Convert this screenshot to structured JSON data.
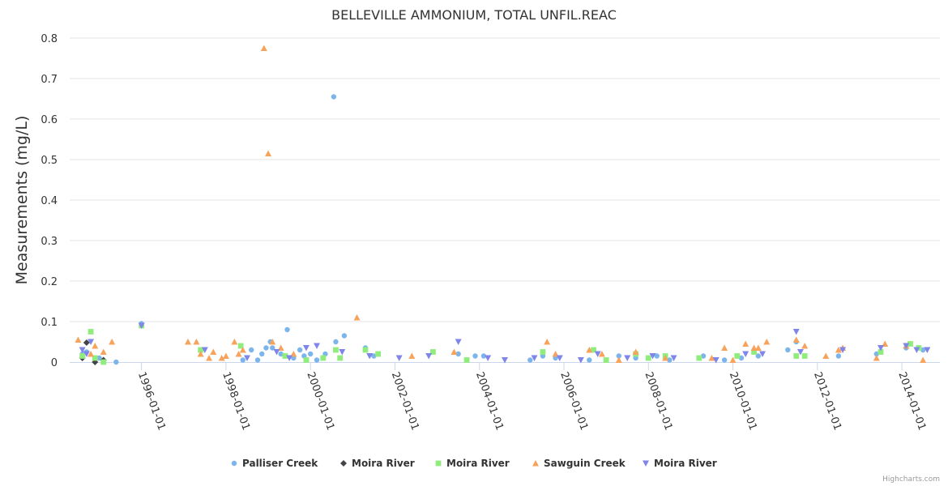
{
  "chart_data": {
    "type": "scatter",
    "title": "BELLEVILLE AMMONIUM, TOTAL UNFIL.REAC",
    "xlabel": "",
    "ylabel": "Measurements (mg/L)",
    "ylim": [
      0,
      0.8
    ],
    "yticks": [
      "0",
      "0.1",
      "0.2",
      "0.3",
      "0.4",
      "0.5",
      "0.6",
      "0.7",
      "0.8"
    ],
    "xlim": [
      1994.3,
      2014.9
    ],
    "xticks": [
      {
        "label": "1996-01-01",
        "value": 1996.0
      },
      {
        "label": "1998-01-01",
        "value": 1998.0
      },
      {
        "label": "2000-01-01",
        "value": 2000.0
      },
      {
        "label": "2002-01-01",
        "value": 2002.0
      },
      {
        "label": "2004-01-01",
        "value": 2004.0
      },
      {
        "label": "2006-01-01",
        "value": 2006.0
      },
      {
        "label": "2008-01-01",
        "value": 2008.0
      },
      {
        "label": "2010-01-01",
        "value": 2010.0
      },
      {
        "label": "2012-01-01",
        "value": 2012.0
      },
      {
        "label": "2014-01-01",
        "value": 2014.0
      }
    ],
    "grid": true,
    "legend_position": "bottom-center",
    "credits": "Highcharts.com",
    "series": [
      {
        "name": "Palliser Creek",
        "symbol": "circle",
        "color": "#7cb5ec",
        "points": [
          [
            1994.6,
            0.02
          ],
          [
            1994.7,
            0.025
          ],
          [
            1995.0,
            0.01
          ],
          [
            1995.4,
            0.0
          ],
          [
            1996.0,
            0.095
          ],
          [
            1998.4,
            0.005
          ],
          [
            1998.6,
            0.03
          ],
          [
            1998.75,
            0.005
          ],
          [
            1998.85,
            0.02
          ],
          [
            1998.95,
            0.035
          ],
          [
            1999.05,
            0.05
          ],
          [
            1999.1,
            0.035
          ],
          [
            1999.3,
            0.02
          ],
          [
            1999.45,
            0.08
          ],
          [
            1999.6,
            0.01
          ],
          [
            1999.75,
            0.03
          ],
          [
            1999.85,
            0.015
          ],
          [
            2000.0,
            0.02
          ],
          [
            2000.15,
            0.005
          ],
          [
            2000.35,
            0.02
          ],
          [
            2000.55,
            0.655
          ],
          [
            2000.6,
            0.05
          ],
          [
            2000.8,
            0.065
          ],
          [
            2001.3,
            0.035
          ],
          [
            2001.5,
            0.015
          ],
          [
            2003.5,
            0.02
          ],
          [
            2003.9,
            0.015
          ],
          [
            2004.1,
            0.015
          ],
          [
            2005.2,
            0.005
          ],
          [
            2005.5,
            0.015
          ],
          [
            2005.8,
            0.01
          ],
          [
            2006.6,
            0.005
          ],
          [
            2007.3,
            0.015
          ],
          [
            2007.7,
            0.01
          ],
          [
            2008.2,
            0.015
          ],
          [
            2008.5,
            0.005
          ],
          [
            2009.3,
            0.015
          ],
          [
            2009.8,
            0.005
          ],
          [
            2010.2,
            0.01
          ],
          [
            2010.6,
            0.015
          ],
          [
            2011.3,
            0.03
          ],
          [
            2011.5,
            0.05
          ],
          [
            2012.5,
            0.015
          ],
          [
            2013.4,
            0.02
          ],
          [
            2014.1,
            0.035
          ],
          [
            2014.5,
            0.03
          ]
        ]
      },
      {
        "name": "Moira River",
        "symbol": "diamond",
        "color": "#434348",
        "points": [
          [
            1994.6,
            0.01
          ],
          [
            1994.7,
            0.048
          ],
          [
            1994.9,
            0.0
          ],
          [
            1995.1,
            0.005
          ]
        ]
      },
      {
        "name": "Moira River",
        "symbol": "square",
        "color": "#90ed7d",
        "points": [
          [
            1994.6,
            0.015
          ],
          [
            1994.8,
            0.075
          ],
          [
            1994.9,
            0.01
          ],
          [
            1995.1,
            0.0
          ],
          [
            1996.0,
            0.09
          ],
          [
            1997.4,
            0.03
          ],
          [
            1998.35,
            0.04
          ],
          [
            1999.4,
            0.015
          ],
          [
            1999.9,
            0.005
          ],
          [
            2000.3,
            0.01
          ],
          [
            2000.6,
            0.03
          ],
          [
            2000.7,
            0.01
          ],
          [
            2001.3,
            0.03
          ],
          [
            2001.6,
            0.02
          ],
          [
            2002.9,
            0.025
          ],
          [
            2003.7,
            0.005
          ],
          [
            2005.5,
            0.025
          ],
          [
            2006.7,
            0.03
          ],
          [
            2007.0,
            0.005
          ],
          [
            2007.7,
            0.02
          ],
          [
            2008.0,
            0.01
          ],
          [
            2008.4,
            0.015
          ],
          [
            2009.2,
            0.01
          ],
          [
            2010.1,
            0.015
          ],
          [
            2010.5,
            0.025
          ],
          [
            2011.5,
            0.015
          ],
          [
            2011.7,
            0.015
          ],
          [
            2013.5,
            0.025
          ],
          [
            2014.2,
            0.045
          ],
          [
            2014.4,
            0.035
          ]
        ]
      },
      {
        "name": "Sawguin Creek",
        "symbol": "triangle",
        "color": "#f7a35c",
        "points": [
          [
            1994.5,
            0.055
          ],
          [
            1994.8,
            0.02
          ],
          [
            1994.9,
            0.04
          ],
          [
            1995.1,
            0.025
          ],
          [
            1995.3,
            0.05
          ],
          [
            1997.1,
            0.05
          ],
          [
            1997.3,
            0.05
          ],
          [
            1997.4,
            0.02
          ],
          [
            1997.6,
            0.01
          ],
          [
            1997.7,
            0.025
          ],
          [
            1997.9,
            0.01
          ],
          [
            1998.0,
            0.015
          ],
          [
            1998.2,
            0.05
          ],
          [
            1998.3,
            0.02
          ],
          [
            1998.4,
            0.03
          ],
          [
            1998.9,
            0.775
          ],
          [
            1999.0,
            0.515
          ],
          [
            1999.1,
            0.05
          ],
          [
            1999.3,
            0.035
          ],
          [
            1999.6,
            0.02
          ],
          [
            2001.1,
            0.11
          ],
          [
            2002.4,
            0.015
          ],
          [
            2003.4,
            0.025
          ],
          [
            2005.6,
            0.05
          ],
          [
            2005.8,
            0.02
          ],
          [
            2006.6,
            0.03
          ],
          [
            2006.9,
            0.02
          ],
          [
            2007.3,
            0.005
          ],
          [
            2007.7,
            0.025
          ],
          [
            2008.4,
            0.01
          ],
          [
            2009.5,
            0.01
          ],
          [
            2009.8,
            0.035
          ],
          [
            2010.0,
            0.005
          ],
          [
            2010.3,
            0.045
          ],
          [
            2010.5,
            0.035
          ],
          [
            2010.6,
            0.035
          ],
          [
            2010.8,
            0.05
          ],
          [
            2011.5,
            0.055
          ],
          [
            2011.7,
            0.04
          ],
          [
            2012.2,
            0.015
          ],
          [
            2012.5,
            0.03
          ],
          [
            2012.6,
            0.035
          ],
          [
            2013.4,
            0.01
          ],
          [
            2013.6,
            0.045
          ],
          [
            2014.1,
            0.04
          ],
          [
            2014.5,
            0.005
          ]
        ]
      },
      {
        "name": "Moira River",
        "symbol": "triangle-down",
        "color": "#8085e9",
        "points": [
          [
            1994.6,
            0.03
          ],
          [
            1994.7,
            0.02
          ],
          [
            1994.8,
            0.05
          ],
          [
            1996.0,
            0.09
          ],
          [
            1997.5,
            0.03
          ],
          [
            1998.5,
            0.01
          ],
          [
            1999.2,
            0.025
          ],
          [
            1999.5,
            0.01
          ],
          [
            1999.9,
            0.035
          ],
          [
            2000.15,
            0.04
          ],
          [
            2000.75,
            0.025
          ],
          [
            2001.4,
            0.015
          ],
          [
            2002.1,
            0.01
          ],
          [
            2002.8,
            0.015
          ],
          [
            2003.5,
            0.05
          ],
          [
            2004.2,
            0.01
          ],
          [
            2004.6,
            0.005
          ],
          [
            2005.3,
            0.01
          ],
          [
            2005.9,
            0.01
          ],
          [
            2006.4,
            0.005
          ],
          [
            2006.8,
            0.02
          ],
          [
            2007.5,
            0.01
          ],
          [
            2008.1,
            0.015
          ],
          [
            2008.6,
            0.01
          ],
          [
            2009.6,
            0.005
          ],
          [
            2010.3,
            0.02
          ],
          [
            2010.7,
            0.02
          ],
          [
            2011.5,
            0.075
          ],
          [
            2011.6,
            0.025
          ],
          [
            2012.6,
            0.03
          ],
          [
            2013.5,
            0.035
          ],
          [
            2014.1,
            0.04
          ],
          [
            2014.35,
            0.03
          ],
          [
            2014.6,
            0.03
          ]
        ]
      }
    ]
  }
}
